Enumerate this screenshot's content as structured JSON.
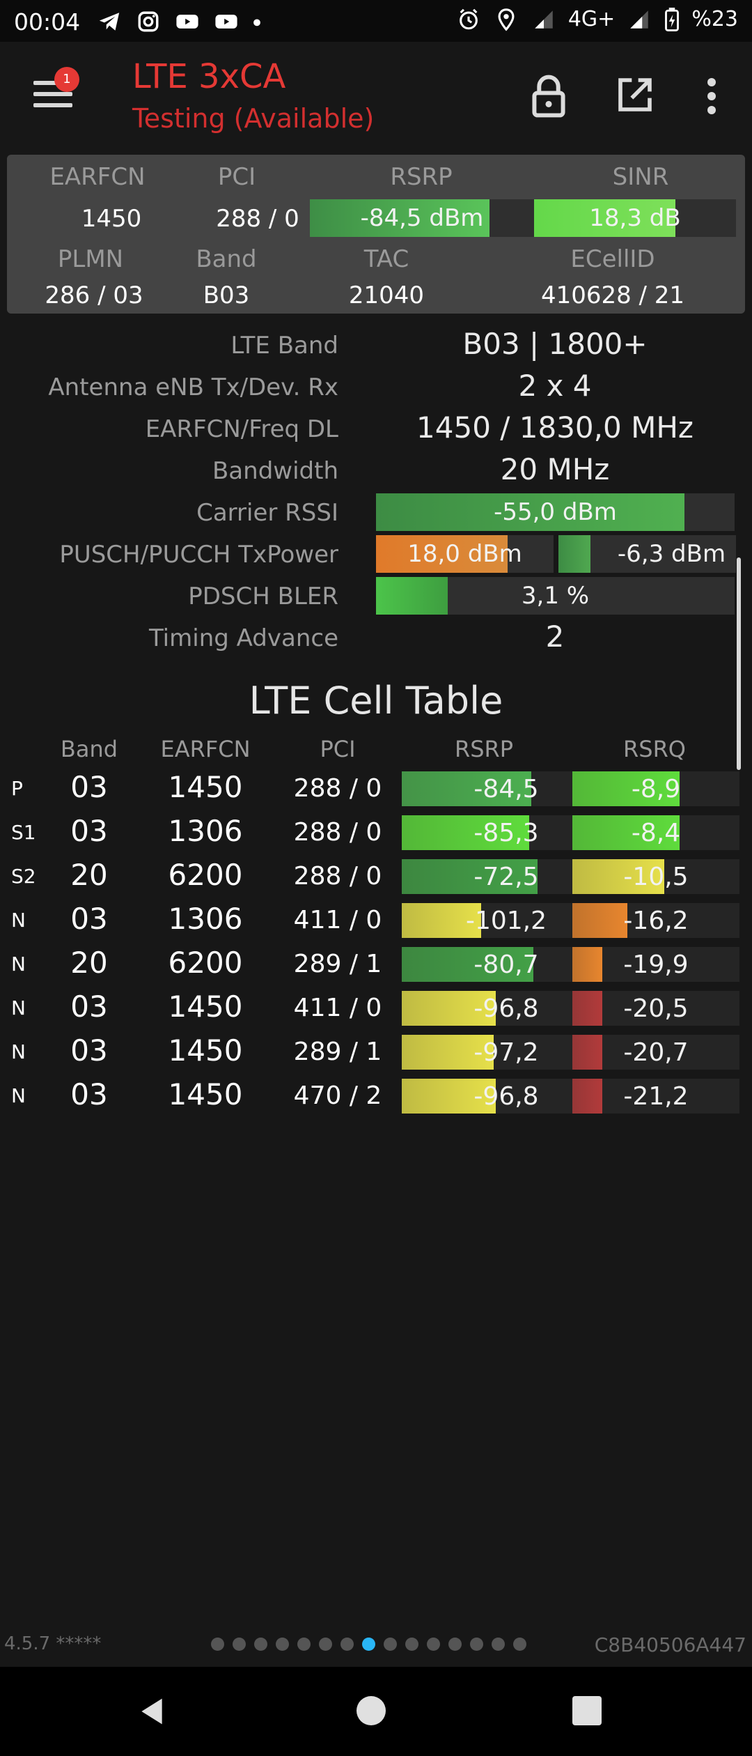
{
  "status_bar": {
    "time": "00:04",
    "left_icons": [
      "telegram-icon",
      "instagram-icon",
      "youtube-icon",
      "youtube-icon",
      "dot-icon"
    ],
    "network": "4G+",
    "battery": "%23"
  },
  "app_bar": {
    "title": "LTE 3xCA",
    "subtitle": "Testing (Available)",
    "badge": "1",
    "accent": "#e53935"
  },
  "summary": {
    "earfcn_label": "EARFCN",
    "earfcn": "1450",
    "pci_label": "PCI",
    "pci": "288 / 0",
    "rsrp_label": "RSRP",
    "rsrp": "-84,5 dBm",
    "rsrp_level": 0.8,
    "sinr_label": "SINR",
    "sinr": "18,3 dB",
    "sinr_level": 0.7,
    "plmn_label": "PLMN",
    "plmn": "286 / 03",
    "band_label": "Band",
    "band": "B03",
    "tac_label": "TAC",
    "tac": "21040",
    "ecellid_label": "ECellID",
    "ecellid": "410628 / 21"
  },
  "details": [
    {
      "label": "LTE Band",
      "value": "B03 | 1800+"
    },
    {
      "label": "Antenna eNB Tx/Dev. Rx",
      "value": "2 x 4"
    },
    {
      "label": "EARFCN/Freq DL",
      "value": "1450 / 1830,0 MHz"
    },
    {
      "label": "Bandwidth",
      "value": "20 MHz"
    },
    {
      "label": "Carrier RSSI",
      "value": "-55,0 dBm",
      "level": 0.86
    },
    {
      "label": "PUSCH/PUCCH TxPower",
      "value": "18,0 dBm",
      "level": 0.74,
      "value2": "-6,3 dBm",
      "level2": 0.18
    },
    {
      "label": "PDSCH BLER",
      "value": "3,1 %",
      "level": 0.2
    },
    {
      "label": "Timing Advance",
      "value": "2"
    }
  ],
  "cell_table": {
    "title": "LTE Cell Table",
    "headers": {
      "band": "Band",
      "earfcn": "EARFCN",
      "pci": "PCI",
      "rsrp": "RSRP",
      "rsrq": "RSRQ"
    },
    "rows": [
      {
        "type": "P",
        "band": "03",
        "earfcn": "1450",
        "pci": "288 / 0",
        "rsrp": "-84,5",
        "rsrp_level": 0.62,
        "rsrp_color": "#4caf50",
        "rsrq": "-8,9",
        "rsrq_level": 0.64,
        "rsrq_color": "#5fdc3c"
      },
      {
        "type": "S1",
        "band": "03",
        "earfcn": "1306",
        "pci": "288 / 0",
        "rsrp": "-85,3",
        "rsrp_level": 0.61,
        "rsrp_color": "#5fdc3c",
        "rsrq": "-8,4",
        "rsrq_level": 0.64,
        "rsrq_color": "#5fdc3c"
      },
      {
        "type": "S2",
        "band": "20",
        "earfcn": "6200",
        "pci": "288 / 0",
        "rsrp": "-72,5",
        "rsrp_level": 0.65,
        "rsrp_color": "#43a047",
        "rsrq": "-10,5",
        "rsrq_level": 0.55,
        "rsrq_color": "#e6e04a"
      },
      {
        "type": "N",
        "band": "03",
        "earfcn": "1306",
        "pci": "411 / 0",
        "rsrp": "-101,2",
        "rsrp_level": 0.38,
        "rsrp_color": "#e6e04a",
        "rsrq": "-16,2",
        "rsrq_level": 0.33,
        "rsrq_color": "#e8862e"
      },
      {
        "type": "N",
        "band": "20",
        "earfcn": "6200",
        "pci": "289 / 1",
        "rsrp": "-80,7",
        "rsrp_level": 0.63,
        "rsrp_color": "#43a047",
        "rsrq": "-19,9",
        "rsrq_level": 0.18,
        "rsrq_color": "#e8862e"
      },
      {
        "type": "N",
        "band": "03",
        "earfcn": "1450",
        "pci": "411 / 0",
        "rsrp": "-96,8",
        "rsrp_level": 0.45,
        "rsrp_color": "#e6e04a",
        "rsrq": "-20,5",
        "rsrq_level": 0.18,
        "rsrq_color": "#b23b3b"
      },
      {
        "type": "N",
        "band": "03",
        "earfcn": "1450",
        "pci": "289 / 1",
        "rsrp": "-97,2",
        "rsrp_level": 0.44,
        "rsrp_color": "#e6e04a",
        "rsrq": "-20,7",
        "rsrq_level": 0.18,
        "rsrq_color": "#b23b3b"
      },
      {
        "type": "N",
        "band": "03",
        "earfcn": "1450",
        "pci": "470 / 2",
        "rsrp": "-96,8",
        "rsrp_level": 0.45,
        "rsrp_color": "#e6e04a",
        "rsrq": "-21,2",
        "rsrq_level": 0.18,
        "rsrq_color": "#b23b3b"
      }
    ]
  },
  "footer": {
    "version": "4.5.7 *****",
    "device_id": "C8B40506A447",
    "page_count": 15,
    "active_page": 8
  }
}
